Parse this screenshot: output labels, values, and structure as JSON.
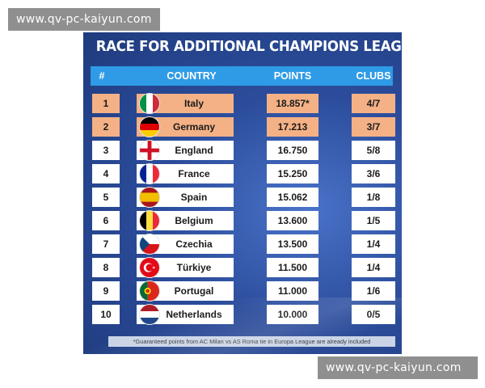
{
  "watermark": {
    "top_text": "www.qv-pc-kaiyun.com",
    "bottom_text": "www.qv-pc-kaiyun.com"
  },
  "graphic": {
    "title": "RACE FOR ADDITIONAL CHAMPIONS LEAGUE SPOTS",
    "columns": {
      "num": "#",
      "country": "COUNTRY",
      "points": "POINTS",
      "clubs": "CLUBS"
    },
    "rows": [
      {
        "rank": "1",
        "flag": "italy-flag-icon",
        "country": "Italy",
        "points": "18.857*",
        "clubs": "4/7",
        "highlight": true
      },
      {
        "rank": "2",
        "flag": "germany-flag-icon",
        "country": "Germany",
        "points": "17.213",
        "clubs": "3/7",
        "highlight": true
      },
      {
        "rank": "3",
        "flag": "england-flag-icon",
        "country": "England",
        "points": "16.750",
        "clubs": "5/8",
        "highlight": false
      },
      {
        "rank": "4",
        "flag": "france-flag-icon",
        "country": "France",
        "points": "15.250",
        "clubs": "3/6",
        "highlight": false
      },
      {
        "rank": "5",
        "flag": "spain-flag-icon",
        "country": "Spain",
        "points": "15.062",
        "clubs": "1/8",
        "highlight": false
      },
      {
        "rank": "6",
        "flag": "belgium-flag-icon",
        "country": "Belgium",
        "points": "13.600",
        "clubs": "1/5",
        "highlight": false
      },
      {
        "rank": "7",
        "flag": "czechia-flag-icon",
        "country": "Czechia",
        "points": "13.500",
        "clubs": "1/4",
        "highlight": false
      },
      {
        "rank": "8",
        "flag": "turkiye-flag-icon",
        "country": "Türkiye",
        "points": "11.500",
        "clubs": "1/4",
        "highlight": false
      },
      {
        "rank": "9",
        "flag": "portugal-flag-icon",
        "country": "Portugal",
        "points": "11.000",
        "clubs": "1/6",
        "highlight": false
      },
      {
        "rank": "10",
        "flag": "netherlands-flag-icon",
        "country": "Netherlands",
        "points": "10.000",
        "clubs": "0/5",
        "highlight": false
      }
    ],
    "footnote": "*Guaranteed points from AC Milan vs AS Roma tie in Europa League are already included",
    "colors": {
      "header_bar": "#2f9be6",
      "highlight_row": "#f4b186",
      "background": "#2c4d9c"
    }
  }
}
